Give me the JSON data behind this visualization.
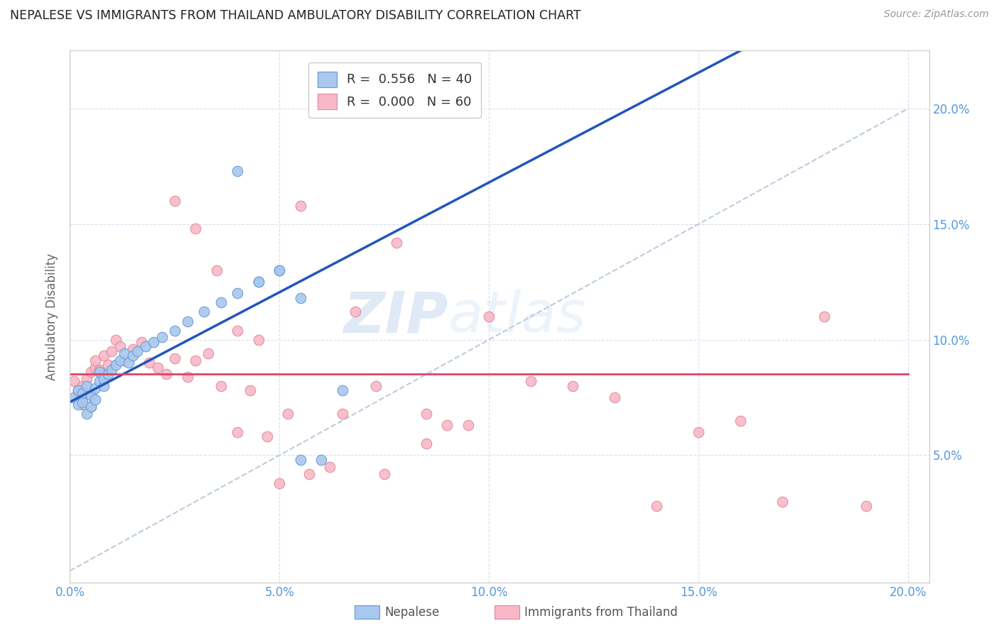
{
  "title": "NEPALESE VS IMMIGRANTS FROM THAILAND AMBULATORY DISABILITY CORRELATION CHART",
  "source": "Source: ZipAtlas.com",
  "ylabel": "Ambulatory Disability",
  "x_ticklabels": [
    "0.0%",
    "5.0%",
    "10.0%",
    "15.0%",
    "20.0%"
  ],
  "y_ticklabels_right": [
    "5.0%",
    "10.0%",
    "15.0%",
    "20.0%"
  ],
  "x_ticks": [
    0.0,
    0.05,
    0.1,
    0.15,
    0.2
  ],
  "y_ticks": [
    0.05,
    0.1,
    0.15,
    0.2
  ],
  "xlim": [
    0.0,
    0.205
  ],
  "ylim": [
    -0.005,
    0.225
  ],
  "nepalese_color": "#a8c8f0",
  "thailand_color": "#f8b8c8",
  "nepalese_edge": "#6699cc",
  "thailand_edge": "#e08898",
  "trend_blue": "#2255bb",
  "trend_pink": "#dd4466",
  "ref_line_color": "#bbccdd",
  "watermark_zip": "ZIP",
  "watermark_atlas": "atlas",
  "legend_label1": "Nepalese",
  "legend_label2": "Immigrants from Thailand",
  "grid_color": "#ddddee",
  "background_color": "#ffffff",
  "title_color": "#222222",
  "axis_color": "#cccccc",
  "tick_color": "#5599dd",
  "nepalese_x": [
    0.001,
    0.002,
    0.002,
    0.003,
    0.003,
    0.004,
    0.004,
    0.005,
    0.005,
    0.006,
    0.006,
    0.007,
    0.007,
    0.008,
    0.008,
    0.009,
    0.01,
    0.011,
    0.012,
    0.013,
    0.014,
    0.015,
    0.016,
    0.018,
    0.02,
    0.022,
    0.025,
    0.028,
    0.032,
    0.036,
    0.04,
    0.045,
    0.05,
    0.055,
    0.06,
    0.065,
    0.04,
    0.045,
    0.05,
    0.055
  ],
  "nepalese_y": [
    0.075,
    0.072,
    0.078,
    0.077,
    0.073,
    0.068,
    0.08,
    0.071,
    0.076,
    0.074,
    0.079,
    0.082,
    0.086,
    0.08,
    0.083,
    0.085,
    0.087,
    0.089,
    0.091,
    0.094,
    0.09,
    0.093,
    0.095,
    0.097,
    0.099,
    0.101,
    0.104,
    0.108,
    0.112,
    0.116,
    0.12,
    0.125,
    0.13,
    0.118,
    0.048,
    0.078,
    0.173,
    0.125,
    0.13,
    0.048
  ],
  "thailand_x": [
    0.001,
    0.002,
    0.002,
    0.003,
    0.003,
    0.004,
    0.004,
    0.005,
    0.005,
    0.006,
    0.006,
    0.007,
    0.008,
    0.009,
    0.01,
    0.011,
    0.012,
    0.013,
    0.015,
    0.017,
    0.019,
    0.021,
    0.023,
    0.025,
    0.028,
    0.03,
    0.033,
    0.036,
    0.04,
    0.043,
    0.047,
    0.052,
    0.057,
    0.062,
    0.068,
    0.073,
    0.078,
    0.085,
    0.09,
    0.095,
    0.1,
    0.11,
    0.12,
    0.13,
    0.14,
    0.15,
    0.16,
    0.17,
    0.18,
    0.19,
    0.025,
    0.03,
    0.035,
    0.04,
    0.045,
    0.05,
    0.055,
    0.065,
    0.075,
    0.085
  ],
  "thailand_y": [
    0.082,
    0.078,
    0.075,
    0.08,
    0.072,
    0.077,
    0.083,
    0.086,
    0.071,
    0.088,
    0.091,
    0.087,
    0.093,
    0.089,
    0.095,
    0.1,
    0.097,
    0.091,
    0.096,
    0.099,
    0.09,
    0.088,
    0.085,
    0.092,
    0.084,
    0.091,
    0.094,
    0.08,
    0.06,
    0.078,
    0.058,
    0.068,
    0.042,
    0.045,
    0.112,
    0.08,
    0.142,
    0.055,
    0.063,
    0.063,
    0.11,
    0.082,
    0.08,
    0.075,
    0.028,
    0.06,
    0.065,
    0.03,
    0.11,
    0.028,
    0.16,
    0.148,
    0.13,
    0.104,
    0.1,
    0.038,
    0.158,
    0.068,
    0.042,
    0.068
  ]
}
